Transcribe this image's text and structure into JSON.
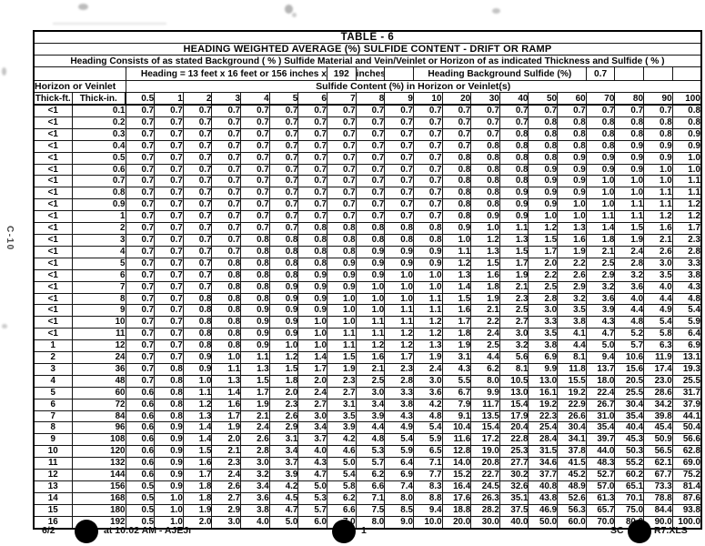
{
  "page": {
    "margin_text": "C-10",
    "footer": {
      "left_date": "6/2",
      "left_rest": "at 10:02 AM - AJEJr",
      "page_number": "1",
      "file_prefix": "SC",
      "file_suffix": "R7.XLS"
    }
  },
  "table": {
    "title": "TABLE  -  6",
    "subtitle": "HEADING WEIGHTED AVERAGE (%) SULFIDE CONTENT  -  DRIFT OR RAMP",
    "description": "Heading Consists of as stated Background  ( % )  Sulfide Material and Vein/Veinlet or Horizon of as indicated Thickness and Sulfide ( % )",
    "heading_spec": {
      "label": "Heading = 13 feet x 16 feet or 156 inches x",
      "width_value": "192",
      "unit": "inches",
      "background_label": "Heading Background Sulfide (%)",
      "background_value": "0.7"
    },
    "row_group_label": "Horizon or Veinlet",
    "col_group_label": "Sulfide Content (%) in Horizon or Veinlet(s)",
    "thick_ft_header": "Thick-ft.",
    "thick_in_header": "Thick-in.",
    "sulfide_columns": [
      "0.5",
      "1",
      "2",
      "3",
      "4",
      "5",
      "6",
      "7",
      "8",
      "9",
      "10",
      "20",
      "30",
      "40",
      "50",
      "60",
      "70",
      "80",
      "90",
      "100"
    ],
    "rows": [
      {
        "ft": "<1",
        "in": "0.1",
        "v": [
          "0.7",
          "0.7",
          "0.7",
          "0.7",
          "0.7",
          "0.7",
          "0.7",
          "0.7",
          "0.7",
          "0.7",
          "0.7",
          "0.7",
          "0.7",
          "0.7",
          "0.7",
          "0.7",
          "0.7",
          "0.7",
          "0.7",
          "0.8"
        ]
      },
      {
        "ft": "<1",
        "in": "0.2",
        "v": [
          "0.7",
          "0.7",
          "0.7",
          "0.7",
          "0.7",
          "0.7",
          "0.7",
          "0.7",
          "0.7",
          "0.7",
          "0.7",
          "0.7",
          "0.7",
          "0.7",
          "0.8",
          "0.8",
          "0.8",
          "0.8",
          "0.8",
          "0.8"
        ]
      },
      {
        "ft": "<1",
        "in": "0.3",
        "v": [
          "0.7",
          "0.7",
          "0.7",
          "0.7",
          "0.7",
          "0.7",
          "0.7",
          "0.7",
          "0.7",
          "0.7",
          "0.7",
          "0.7",
          "0.7",
          "0.8",
          "0.8",
          "0.8",
          "0.8",
          "0.8",
          "0.8",
          "0.9"
        ]
      },
      {
        "ft": "<1",
        "in": "0.4",
        "v": [
          "0.7",
          "0.7",
          "0.7",
          "0.7",
          "0.7",
          "0.7",
          "0.7",
          "0.7",
          "0.7",
          "0.7",
          "0.7",
          "0.7",
          "0.8",
          "0.8",
          "0.8",
          "0.8",
          "0.8",
          "0.9",
          "0.9",
          "0.9"
        ]
      },
      {
        "ft": "<1",
        "in": "0.5",
        "v": [
          "0.7",
          "0.7",
          "0.7",
          "0.7",
          "0.7",
          "0.7",
          "0.7",
          "0.7",
          "0.7",
          "0.7",
          "0.7",
          "0.8",
          "0.8",
          "0.8",
          "0.8",
          "0.9",
          "0.9",
          "0.9",
          "0.9",
          "1.0"
        ]
      },
      {
        "ft": "<1",
        "in": "0.6",
        "v": [
          "0.7",
          "0.7",
          "0.7",
          "0.7",
          "0.7",
          "0.7",
          "0.7",
          "0.7",
          "0.7",
          "0.7",
          "0.7",
          "0.8",
          "0.8",
          "0.8",
          "0.9",
          "0.9",
          "0.9",
          "0.9",
          "1.0",
          "1.0"
        ]
      },
      {
        "ft": "<1",
        "in": "0.7",
        "v": [
          "0.7",
          "0.7",
          "0.7",
          "0.7",
          "0.7",
          "0.7",
          "0.7",
          "0.7",
          "0.7",
          "0.7",
          "0.7",
          "0.8",
          "0.8",
          "0.8",
          "0.9",
          "0.9",
          "1.0",
          "1.0",
          "1.0",
          "1.1"
        ]
      },
      {
        "ft": "<1",
        "in": "0.8",
        "v": [
          "0.7",
          "0.7",
          "0.7",
          "0.7",
          "0.7",
          "0.7",
          "0.7",
          "0.7",
          "0.7",
          "0.7",
          "0.7",
          "0.8",
          "0.8",
          "0.9",
          "0.9",
          "0.9",
          "1.0",
          "1.0",
          "1.1",
          "1.1"
        ]
      },
      {
        "ft": "<1",
        "in": "0.9",
        "v": [
          "0.7",
          "0.7",
          "0.7",
          "0.7",
          "0.7",
          "0.7",
          "0.7",
          "0.7",
          "0.7",
          "0.7",
          "0.7",
          "0.8",
          "0.8",
          "0.9",
          "0.9",
          "1.0",
          "1.0",
          "1.1",
          "1.1",
          "1.2"
        ]
      },
      {
        "ft": "<1",
        "in": "1",
        "v": [
          "0.7",
          "0.7",
          "0.7",
          "0.7",
          "0.7",
          "0.7",
          "0.7",
          "0.7",
          "0.7",
          "0.7",
          "0.7",
          "0.8",
          "0.9",
          "0.9",
          "1.0",
          "1.0",
          "1.1",
          "1.1",
          "1.2",
          "1.2"
        ]
      },
      {
        "ft": "<1",
        "in": "2",
        "v": [
          "0.7",
          "0.7",
          "0.7",
          "0.7",
          "0.7",
          "0.7",
          "0.8",
          "0.8",
          "0.8",
          "0.8",
          "0.8",
          "0.9",
          "1.0",
          "1.1",
          "1.2",
          "1.3",
          "1.4",
          "1.5",
          "1.6",
          "1.7"
        ]
      },
      {
        "ft": "<1",
        "in": "3",
        "v": [
          "0.7",
          "0.7",
          "0.7",
          "0.7",
          "0.8",
          "0.8",
          "0.8",
          "0.8",
          "0.8",
          "0.8",
          "0.8",
          "1.0",
          "1.2",
          "1.3",
          "1.5",
          "1.6",
          "1.8",
          "1.9",
          "2.1",
          "2.3"
        ]
      },
      {
        "ft": "<1",
        "in": "4",
        "v": [
          "0.7",
          "0.7",
          "0.7",
          "0.7",
          "0.8",
          "0.8",
          "0.8",
          "0.8",
          "0.9",
          "0.9",
          "0.9",
          "1.1",
          "1.3",
          "1.5",
          "1.7",
          "1.9",
          "2.1",
          "2.4",
          "2.6",
          "2.8"
        ]
      },
      {
        "ft": "<1",
        "in": "5",
        "v": [
          "0.7",
          "0.7",
          "0.7",
          "0.8",
          "0.8",
          "0.8",
          "0.8",
          "0.9",
          "0.9",
          "0.9",
          "0.9",
          "1.2",
          "1.5",
          "1.7",
          "2.0",
          "2.2",
          "2.5",
          "2.8",
          "3.0",
          "3.3"
        ]
      },
      {
        "ft": "<1",
        "in": "6",
        "v": [
          "0.7",
          "0.7",
          "0.7",
          "0.8",
          "0.8",
          "0.8",
          "0.9",
          "0.9",
          "0.9",
          "1.0",
          "1.0",
          "1.3",
          "1.6",
          "1.9",
          "2.2",
          "2.6",
          "2.9",
          "3.2",
          "3.5",
          "3.8"
        ]
      },
      {
        "ft": "<1",
        "in": "7",
        "v": [
          "0.7",
          "0.7",
          "0.7",
          "0.8",
          "0.8",
          "0.9",
          "0.9",
          "0.9",
          "1.0",
          "1.0",
          "1.0",
          "1.4",
          "1.8",
          "2.1",
          "2.5",
          "2.9",
          "3.2",
          "3.6",
          "4.0",
          "4.3"
        ]
      },
      {
        "ft": "<1",
        "in": "8",
        "v": [
          "0.7",
          "0.7",
          "0.8",
          "0.8",
          "0.8",
          "0.9",
          "0.9",
          "1.0",
          "1.0",
          "1.0",
          "1.1",
          "1.5",
          "1.9",
          "2.3",
          "2.8",
          "3.2",
          "3.6",
          "4.0",
          "4.4",
          "4.8"
        ]
      },
      {
        "ft": "<1",
        "in": "9",
        "v": [
          "0.7",
          "0.7",
          "0.8",
          "0.8",
          "0.9",
          "0.9",
          "0.9",
          "1.0",
          "1.0",
          "1.1",
          "1.1",
          "1.6",
          "2.1",
          "2.5",
          "3.0",
          "3.5",
          "3.9",
          "4.4",
          "4.9",
          "5.4"
        ]
      },
      {
        "ft": "<1",
        "in": "10",
        "v": [
          "0.7",
          "0.7",
          "0.8",
          "0.8",
          "0.9",
          "0.9",
          "1.0",
          "1.0",
          "1.1",
          "1.1",
          "1.2",
          "1.7",
          "2.2",
          "2.7",
          "3.3",
          "3.8",
          "4.3",
          "4.8",
          "5.4",
          "5.9"
        ]
      },
      {
        "ft": "<1",
        "in": "11",
        "v": [
          "0.7",
          "0.7",
          "0.8",
          "0.8",
          "0.9",
          "0.9",
          "1.0",
          "1.1",
          "1.1",
          "1.2",
          "1.2",
          "1.8",
          "2.4",
          "3.0",
          "3.5",
          "4.1",
          "4.7",
          "5.2",
          "5.8",
          "6.4"
        ]
      },
      {
        "ft": "1",
        "in": "12",
        "v": [
          "0.7",
          "0.7",
          "0.8",
          "0.8",
          "0.9",
          "1.0",
          "1.0",
          "1.1",
          "1.2",
          "1.2",
          "1.3",
          "1.9",
          "2.5",
          "3.2",
          "3.8",
          "4.4",
          "5.0",
          "5.7",
          "6.3",
          "6.9"
        ]
      },
      {
        "ft": "2",
        "in": "24",
        "v": [
          "0.7",
          "0.7",
          "0.9",
          "1.0",
          "1.1",
          "1.2",
          "1.4",
          "1.5",
          "1.6",
          "1.7",
          "1.9",
          "3.1",
          "4.4",
          "5.6",
          "6.9",
          "8.1",
          "9.4",
          "10.6",
          "11.9",
          "13.1"
        ]
      },
      {
        "ft": "3",
        "in": "36",
        "v": [
          "0.7",
          "0.8",
          "0.9",
          "1.1",
          "1.3",
          "1.5",
          "1.7",
          "1.9",
          "2.1",
          "2.3",
          "2.4",
          "4.3",
          "6.2",
          "8.1",
          "9.9",
          "11.8",
          "13.7",
          "15.6",
          "17.4",
          "19.3"
        ]
      },
      {
        "ft": "4",
        "in": "48",
        "v": [
          "0.7",
          "0.8",
          "1.0",
          "1.3",
          "1.5",
          "1.8",
          "2.0",
          "2.3",
          "2.5",
          "2.8",
          "3.0",
          "5.5",
          "8.0",
          "10.5",
          "13.0",
          "15.5",
          "18.0",
          "20.5",
          "23.0",
          "25.5"
        ]
      },
      {
        "ft": "5",
        "in": "60",
        "v": [
          "0.6",
          "0.8",
          "1.1",
          "1.4",
          "1.7",
          "2.0",
          "2.4",
          "2.7",
          "3.0",
          "3.3",
          "3.6",
          "6.7",
          "9.9",
          "13.0",
          "16.1",
          "19.2",
          "22.4",
          "25.5",
          "28.6",
          "31.7"
        ]
      },
      {
        "ft": "6",
        "in": "72",
        "v": [
          "0.6",
          "0.8",
          "1.2",
          "1.6",
          "1.9",
          "2.3",
          "2.7",
          "3.1",
          "3.4",
          "3.8",
          "4.2",
          "7.9",
          "11.7",
          "15.4",
          "19.2",
          "22.9",
          "26.7",
          "30.4",
          "34.2",
          "37.9"
        ]
      },
      {
        "ft": "7",
        "in": "84",
        "v": [
          "0.6",
          "0.8",
          "1.3",
          "1.7",
          "2.1",
          "2.6",
          "3.0",
          "3.5",
          "3.9",
          "4.3",
          "4.8",
          "9.1",
          "13.5",
          "17.9",
          "22.3",
          "26.6",
          "31.0",
          "35.4",
          "39.8",
          "44.1"
        ]
      },
      {
        "ft": "8",
        "in": "96",
        "v": [
          "0.6",
          "0.9",
          "1.4",
          "1.9",
          "2.4",
          "2.9",
          "3.4",
          "3.9",
          "4.4",
          "4.9",
          "5.4",
          "10.4",
          "15.4",
          "20.4",
          "25.4",
          "30.4",
          "35.4",
          "40.4",
          "45.4",
          "50.4"
        ]
      },
      {
        "ft": "9",
        "in": "108",
        "v": [
          "0.6",
          "0.9",
          "1.4",
          "2.0",
          "2.6",
          "3.1",
          "3.7",
          "4.2",
          "4.8",
          "5.4",
          "5.9",
          "11.6",
          "17.2",
          "22.8",
          "28.4",
          "34.1",
          "39.7",
          "45.3",
          "50.9",
          "56.6"
        ]
      },
      {
        "ft": "10",
        "in": "120",
        "v": [
          "0.6",
          "0.9",
          "1.5",
          "2.1",
          "2.8",
          "3.4",
          "4.0",
          "4.6",
          "5.3",
          "5.9",
          "6.5",
          "12.8",
          "19.0",
          "25.3",
          "31.5",
          "37.8",
          "44.0",
          "50.3",
          "56.5",
          "62.8"
        ]
      },
      {
        "ft": "11",
        "in": "132",
        "v": [
          "0.6",
          "0.9",
          "1.6",
          "2.3",
          "3.0",
          "3.7",
          "4.3",
          "5.0",
          "5.7",
          "6.4",
          "7.1",
          "14.0",
          "20.8",
          "27.7",
          "34.6",
          "41.5",
          "48.3",
          "55.2",
          "62.1",
          "69.0"
        ]
      },
      {
        "ft": "12",
        "in": "144",
        "v": [
          "0.6",
          "0.9",
          "1.7",
          "2.4",
          "3.2",
          "3.9",
          "4.7",
          "5.4",
          "6.2",
          "6.9",
          "7.7",
          "15.2",
          "22.7",
          "30.2",
          "37.7",
          "45.2",
          "52.7",
          "60.2",
          "67.7",
          "75.2"
        ]
      },
      {
        "ft": "13",
        "in": "156",
        "v": [
          "0.5",
          "0.9",
          "1.8",
          "2.6",
          "3.4",
          "4.2",
          "5.0",
          "5.8",
          "6.6",
          "7.4",
          "8.3",
          "16.4",
          "24.5",
          "32.6",
          "40.8",
          "48.9",
          "57.0",
          "65.1",
          "73.3",
          "81.4"
        ]
      },
      {
        "ft": "14",
        "in": "168",
        "v": [
          "0.5",
          "1.0",
          "1.8",
          "2.7",
          "3.6",
          "4.5",
          "5.3",
          "6.2",
          "7.1",
          "8.0",
          "8.8",
          "17.6",
          "26.3",
          "35.1",
          "43.8",
          "52.6",
          "61.3",
          "70.1",
          "78.8",
          "87.6"
        ]
      },
      {
        "ft": "15",
        "in": "180",
        "v": [
          "0.5",
          "1.0",
          "1.9",
          "2.9",
          "3.8",
          "4.7",
          "5.7",
          "6.6",
          "7.5",
          "8.5",
          "9.4",
          "18.8",
          "28.2",
          "37.5",
          "46.9",
          "56.3",
          "65.7",
          "75.0",
          "84.4",
          "93.8"
        ]
      },
      {
        "ft": "16",
        "in": "192",
        "v": [
          "0.5",
          "1.0",
          "2.0",
          "3.0",
          "4.0",
          "5.0",
          "6.0",
          "7.0",
          "8.0",
          "9.0",
          "10.0",
          "20.0",
          "30.0",
          "40.0",
          "50.0",
          "60.0",
          "70.0",
          "80.0",
          "90.0",
          "100.0"
        ]
      }
    ]
  }
}
